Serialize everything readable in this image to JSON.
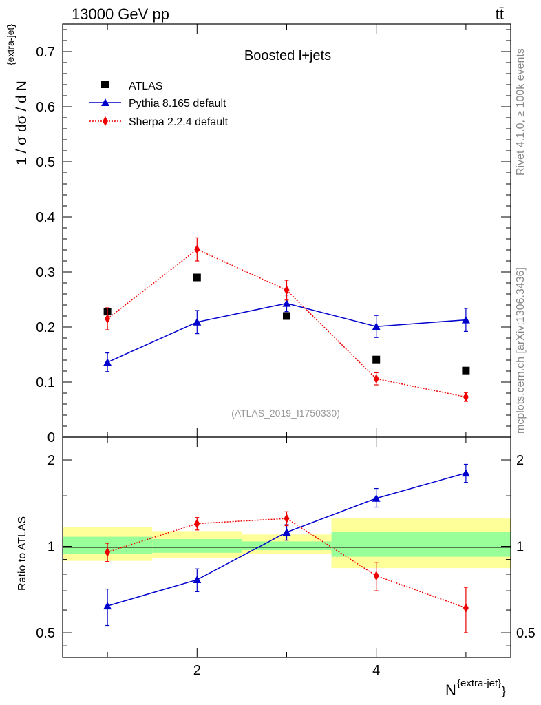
{
  "header": {
    "energy_label": "13000 GeV pp",
    "process_label": "tt̄"
  },
  "side_labels": {
    "rivet": "Rivet 4.1.0, ≥ 100k events",
    "mcplots": "mcplots.cern.ch [arXiv:1306.3436]"
  },
  "chart_data": [
    {
      "type": "scatter",
      "panel": "main",
      "title": "Boosted l+jets",
      "analysis_label": "(ATLAS_2019_I1750330)",
      "ylabel": "1 / σ dσ / d N{extra-jet}",
      "ylim": [
        0,
        0.75
      ],
      "xlim": [
        0.5,
        5.5
      ],
      "yticks": [
        0,
        0.1,
        0.2,
        0.3,
        0.4,
        0.5,
        0.6,
        0.7
      ],
      "ytick_labels": [
        "0",
        "0.1",
        "0.2",
        "0.3",
        "0.4",
        "0.5",
        "0.6",
        "0.7"
      ],
      "legend_position": "top-left",
      "series": [
        {
          "name": "ATLAS",
          "marker": "square",
          "color": "#000000",
          "x": [
            1,
            2,
            3,
            4,
            5
          ],
          "y": [
            0.228,
            0.29,
            0.22,
            0.141,
            0.121
          ],
          "err": [
            0,
            0,
            0,
            0,
            0
          ]
        },
        {
          "name": "Pythia 8.165 default",
          "marker": "triangle",
          "color": "#0000cc",
          "line": "solid",
          "x": [
            1,
            2,
            3,
            4,
            5
          ],
          "y": [
            0.136,
            0.209,
            0.243,
            0.201,
            0.213
          ],
          "err": [
            0.017,
            0.021,
            0.015,
            0.02,
            0.021
          ]
        },
        {
          "name": "Sherpa 2.2.4 default",
          "marker": "diamond",
          "color": "#ee0000",
          "line": "dotted",
          "x": [
            1,
            2,
            3,
            4,
            5
          ],
          "y": [
            0.215,
            0.341,
            0.267,
            0.106,
            0.073
          ],
          "err": [
            0.02,
            0.021,
            0.018,
            0.011,
            0.008
          ]
        }
      ]
    },
    {
      "type": "scatter",
      "panel": "ratio",
      "ylabel": "Ratio to ATLAS",
      "xlabel": "N{extra-jet}",
      "yscale": "log",
      "ylim": [
        0.41,
        2.4
      ],
      "xlim": [
        0.5,
        5.5
      ],
      "yticks": [
        0.5,
        1,
        2
      ],
      "ytick_labels": [
        "0.5",
        "1",
        "2"
      ],
      "xticks": [
        2,
        4
      ],
      "xtick_labels": [
        "2",
        "4"
      ],
      "bands": [
        {
          "x0": 0.5,
          "x1": 1.5,
          "green": [
            0.94,
            1.08
          ],
          "yellow": [
            0.89,
            1.17
          ]
        },
        {
          "x0": 1.5,
          "x1": 2.5,
          "green": [
            0.95,
            1.06
          ],
          "yellow": [
            0.91,
            1.13
          ]
        },
        {
          "x0": 2.5,
          "x1": 3.5,
          "green": [
            0.97,
            1.04
          ],
          "yellow": [
            0.94,
            1.1
          ]
        },
        {
          "x0": 3.5,
          "x1": 4.5,
          "green": [
            0.92,
            1.12
          ],
          "yellow": [
            0.84,
            1.25
          ]
        },
        {
          "x0": 4.5,
          "x1": 5.5,
          "green": [
            0.92,
            1.12
          ],
          "yellow": [
            0.84,
            1.25
          ]
        }
      ],
      "series": [
        {
          "name": "Pythia 8.165 default",
          "marker": "triangle",
          "color": "#0000cc",
          "line": "solid",
          "x": [
            1,
            2,
            3,
            4,
            5
          ],
          "y": [
            0.62,
            0.765,
            1.12,
            1.47,
            1.8
          ],
          "err_lo": [
            0.09,
            0.07,
            0.07,
            0.1,
            0.13
          ],
          "err_hi": [
            0.09,
            0.07,
            0.07,
            0.12,
            0.13
          ]
        },
        {
          "name": "Sherpa 2.2.4 default",
          "marker": "diamond",
          "color": "#ee0000",
          "line": "dotted",
          "x": [
            1,
            2,
            3,
            4,
            5
          ],
          "y": [
            0.955,
            1.2,
            1.25,
            0.79,
            0.61
          ],
          "err_lo": [
            0.07,
            0.06,
            0.07,
            0.09,
            0.11
          ],
          "err_hi": [
            0.07,
            0.06,
            0.07,
            0.09,
            0.11
          ]
        }
      ]
    }
  ]
}
